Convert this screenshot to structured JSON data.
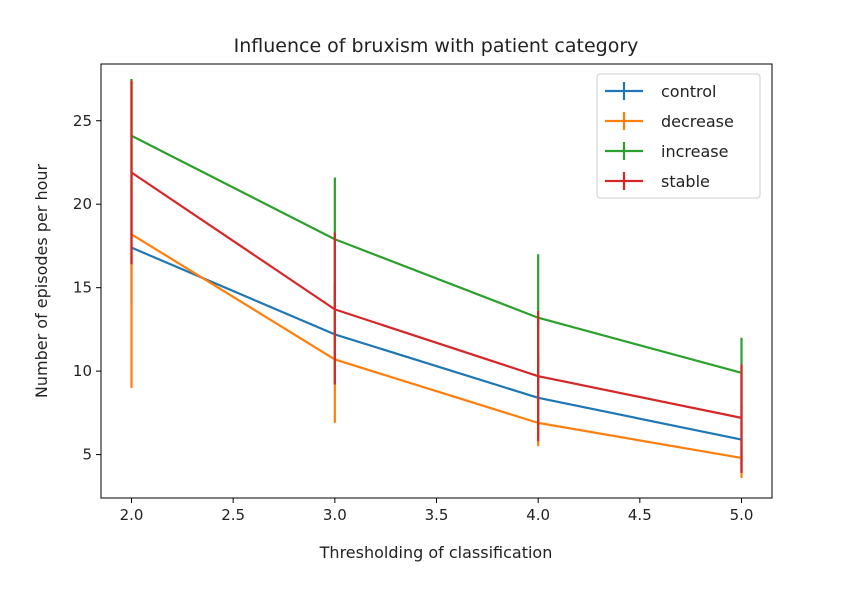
{
  "chart_data": {
    "type": "line",
    "title": "Influence of bruxism with patient category",
    "xlabel": "Thresholding of classification",
    "ylabel": "Number of episodes per hour",
    "x": [
      2.0,
      3.0,
      4.0,
      5.0
    ],
    "xlim": [
      1.85,
      5.15
    ],
    "ylim": [
      2.4,
      28.4
    ],
    "xticks": [
      2.0,
      2.5,
      3.0,
      3.5,
      4.0,
      4.5,
      5.0
    ],
    "xtick_labels": [
      "2.0",
      "2.5",
      "3.0",
      "3.5",
      "4.0",
      "4.5",
      "5.0"
    ],
    "yticks": [
      5,
      10,
      15,
      20,
      25
    ],
    "ytick_labels": [
      "5",
      "10",
      "15",
      "20",
      "25"
    ],
    "grid": false,
    "legend_position": "top-right",
    "series": [
      {
        "name": "control",
        "color": "#1f77b4",
        "values": [
          17.4,
          12.2,
          8.4,
          5.9
        ],
        "err_low": [
          14.0,
          9.3,
          6.0,
          4.0
        ],
        "err_high": [
          20.8,
          15.2,
          11.0,
          7.9
        ]
      },
      {
        "name": "decrease",
        "color": "#ff7f0e",
        "values": [
          18.2,
          10.7,
          6.9,
          4.8
        ],
        "err_low": [
          9.0,
          6.9,
          5.5,
          3.6
        ],
        "err_high": [
          27.5,
          14.5,
          8.4,
          6.0
        ]
      },
      {
        "name": "increase",
        "color": "#2ca02c",
        "values": [
          24.1,
          17.9,
          13.2,
          9.9
        ],
        "err_low": [
          20.7,
          14.2,
          9.4,
          7.8
        ],
        "err_high": [
          27.5,
          21.6,
          17.0,
          12.0
        ]
      },
      {
        "name": "stable",
        "color": "#d62728",
        "values": [
          21.9,
          13.7,
          9.7,
          7.2
        ],
        "err_low": [
          16.4,
          9.2,
          5.8,
          3.9
        ],
        "err_high": [
          27.4,
          18.3,
          13.6,
          10.4
        ]
      }
    ]
  }
}
